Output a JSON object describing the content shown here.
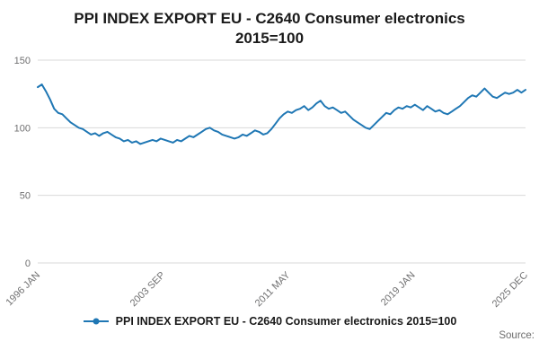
{
  "title": {
    "line1": "PPI INDEX EXPORT EU - C2640 Consumer electronics",
    "line2": "2015=100"
  },
  "legend": {
    "label": "PPI INDEX EXPORT EU - C2640 Consumer electronics 2015=100"
  },
  "source_label": "Source:",
  "chart_data": {
    "type": "line",
    "title": "PPI INDEX EXPORT EU - C2640 Consumer electronics 2015=100",
    "series_name": "PPI INDEX EXPORT EU - C2640 Consumer electronics 2015=100",
    "line_color": "#1f77b4",
    "grid": "horizontal",
    "grid_color": "#d9d9d9",
    "axis_label_color": "#707071",
    "legend_position": "bottom",
    "ylim": [
      0,
      150
    ],
    "yticks": [
      0,
      50,
      100,
      150
    ],
    "x_start": "1996 JAN",
    "x_end": "2025 DEC",
    "x_total_months": 359,
    "points_interval_months": 3,
    "xticks": [
      {
        "label": "1996 JAN",
        "month": 0
      },
      {
        "label": "2003 SEP",
        "month": 92
      },
      {
        "label": "2011 MAY",
        "month": 184
      },
      {
        "label": "2019 JAN",
        "month": 276
      },
      {
        "label": "2025 DEC",
        "month": 359
      }
    ],
    "values": [
      130,
      132,
      127,
      121,
      114,
      111,
      110,
      107,
      104,
      102,
      100,
      99,
      97,
      95,
      96,
      94,
      96,
      97,
      95,
      93,
      92,
      90,
      91,
      89,
      90,
      88,
      89,
      90,
      91,
      90,
      92,
      91,
      90,
      89,
      91,
      90,
      92,
      94,
      93,
      95,
      97,
      99,
      100,
      98,
      97,
      95,
      94,
      93,
      92,
      93,
      95,
      94,
      96,
      98,
      97,
      95,
      96,
      99,
      103,
      107,
      110,
      112,
      111,
      113,
      114,
      116,
      113,
      115,
      118,
      120,
      116,
      114,
      115,
      113,
      111,
      112,
      109,
      106,
      104,
      102,
      100,
      99,
      102,
      105,
      108,
      111,
      110,
      113,
      115,
      114,
      116,
      115,
      117,
      115,
      113,
      116,
      114,
      112,
      113,
      111,
      110,
      112,
      114,
      116,
      119,
      122,
      124,
      123,
      126,
      129,
      126,
      123,
      122,
      124,
      126,
      125,
      126,
      128,
      126,
      128
    ]
  }
}
